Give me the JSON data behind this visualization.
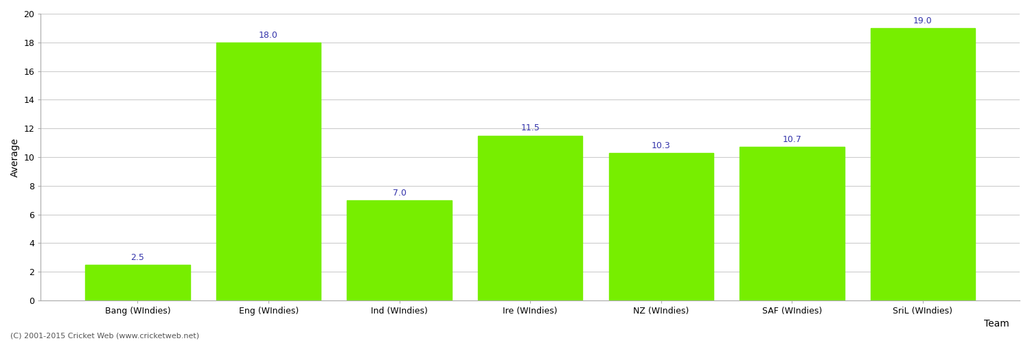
{
  "categories": [
    "Bang (WIndies)",
    "Eng (WIndies)",
    "Ind (WIndies)",
    "Ire (WIndies)",
    "NZ (WIndies)",
    "SAF (WIndies)",
    "SriL (WIndies)"
  ],
  "values": [
    2.5,
    18.0,
    7.0,
    11.5,
    10.3,
    10.7,
    19.0
  ],
  "bar_color": "#77ee00",
  "bar_edge_color": "#77ee00",
  "label_color": "#3333aa",
  "xlabel": "Team",
  "ylabel": "Average",
  "ylim": [
    0,
    20
  ],
  "yticks": [
    0,
    2,
    4,
    6,
    8,
    10,
    12,
    14,
    16,
    18,
    20
  ],
  "background_color": "#ffffff",
  "grid_color": "#cccccc",
  "footer": "(C) 2001-2015 Cricket Web (www.cricketweb.net)",
  "label_fontsize": 9,
  "axis_fontsize": 10,
  "tick_fontsize": 9,
  "footer_fontsize": 8,
  "bar_width": 0.8
}
